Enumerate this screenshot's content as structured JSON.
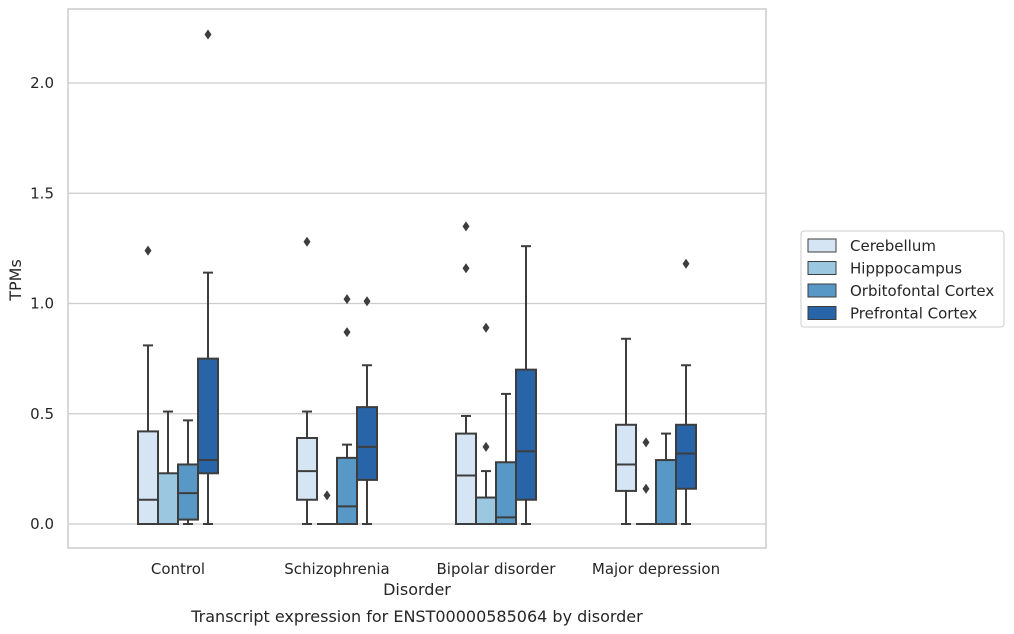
{
  "chart_data": {
    "type": "boxplot",
    "caption": "Transcript expression for ENST00000585064 by disorder",
    "xlabel": "Disorder",
    "ylabel": "TPMs",
    "ylim": [
      -0.11,
      2.34
    ],
    "yticks": [
      "0.0",
      "0.5",
      "1.0",
      "1.5",
      "2.0"
    ],
    "grid": true,
    "legend_position": "right",
    "categories": [
      "Control",
      "Schizophrenia",
      "Bipolar disorder",
      "Major depression"
    ],
    "series": [
      {
        "name": "Cerebellum",
        "color": "#d6e5f4",
        "boxes": [
          {
            "min": 0.0,
            "q1": 0.0,
            "median": 0.11,
            "q3": 0.42,
            "max": 0.81,
            "outliers": [
              1.24
            ]
          },
          {
            "min": 0.0,
            "q1": 0.11,
            "median": 0.24,
            "q3": 0.39,
            "max": 0.51,
            "outliers": [
              1.28
            ]
          },
          {
            "min": 0.0,
            "q1": 0.0,
            "median": 0.22,
            "q3": 0.41,
            "max": 0.49,
            "outliers": [
              1.16,
              1.35
            ]
          },
          {
            "min": 0.0,
            "q1": 0.15,
            "median": 0.27,
            "q3": 0.45,
            "max": 0.84,
            "outliers": []
          }
        ]
      },
      {
        "name": "Hipppocampus",
        "color": "#9cc7e0",
        "boxes": [
          {
            "min": 0.0,
            "q1": 0.0,
            "median": 0.0,
            "q3": 0.23,
            "max": 0.51,
            "outliers": []
          },
          {
            "min": 0.0,
            "q1": 0.0,
            "median": 0.0,
            "q3": 0.0,
            "max": 0.0,
            "outliers": [
              0.13
            ]
          },
          {
            "min": 0.0,
            "q1": 0.0,
            "median": 0.0,
            "q3": 0.12,
            "max": 0.24,
            "outliers": [
              0.35,
              0.89
            ]
          },
          {
            "min": 0.0,
            "q1": 0.0,
            "median": 0.0,
            "q3": 0.0,
            "max": 0.0,
            "outliers": [
              0.16,
              0.37
            ]
          }
        ]
      },
      {
        "name": "Orbitofontal Cortex",
        "color": "#5798c7",
        "boxes": [
          {
            "min": 0.0,
            "q1": 0.02,
            "median": 0.14,
            "q3": 0.27,
            "max": 0.47,
            "outliers": []
          },
          {
            "min": 0.0,
            "q1": 0.0,
            "median": 0.08,
            "q3": 0.3,
            "max": 0.36,
            "outliers": [
              0.87,
              1.02
            ]
          },
          {
            "min": 0.0,
            "q1": 0.0,
            "median": 0.03,
            "q3": 0.28,
            "max": 0.59,
            "outliers": []
          },
          {
            "min": 0.0,
            "q1": 0.0,
            "median": 0.0,
            "q3": 0.29,
            "max": 0.41,
            "outliers": []
          }
        ]
      },
      {
        "name": "Prefrontal Cortex",
        "color": "#2765a8",
        "boxes": [
          {
            "min": 0.0,
            "q1": 0.23,
            "median": 0.29,
            "q3": 0.75,
            "max": 1.14,
            "outliers": [
              2.22
            ]
          },
          {
            "min": 0.0,
            "q1": 0.2,
            "median": 0.35,
            "q3": 0.53,
            "max": 0.72,
            "outliers": [
              1.01
            ]
          },
          {
            "min": 0.0,
            "q1": 0.11,
            "median": 0.33,
            "q3": 0.7,
            "max": 1.26,
            "outliers": []
          },
          {
            "min": 0.0,
            "q1": 0.16,
            "median": 0.32,
            "q3": 0.45,
            "max": 0.72,
            "outliers": [
              1.18
            ]
          }
        ]
      }
    ]
  }
}
